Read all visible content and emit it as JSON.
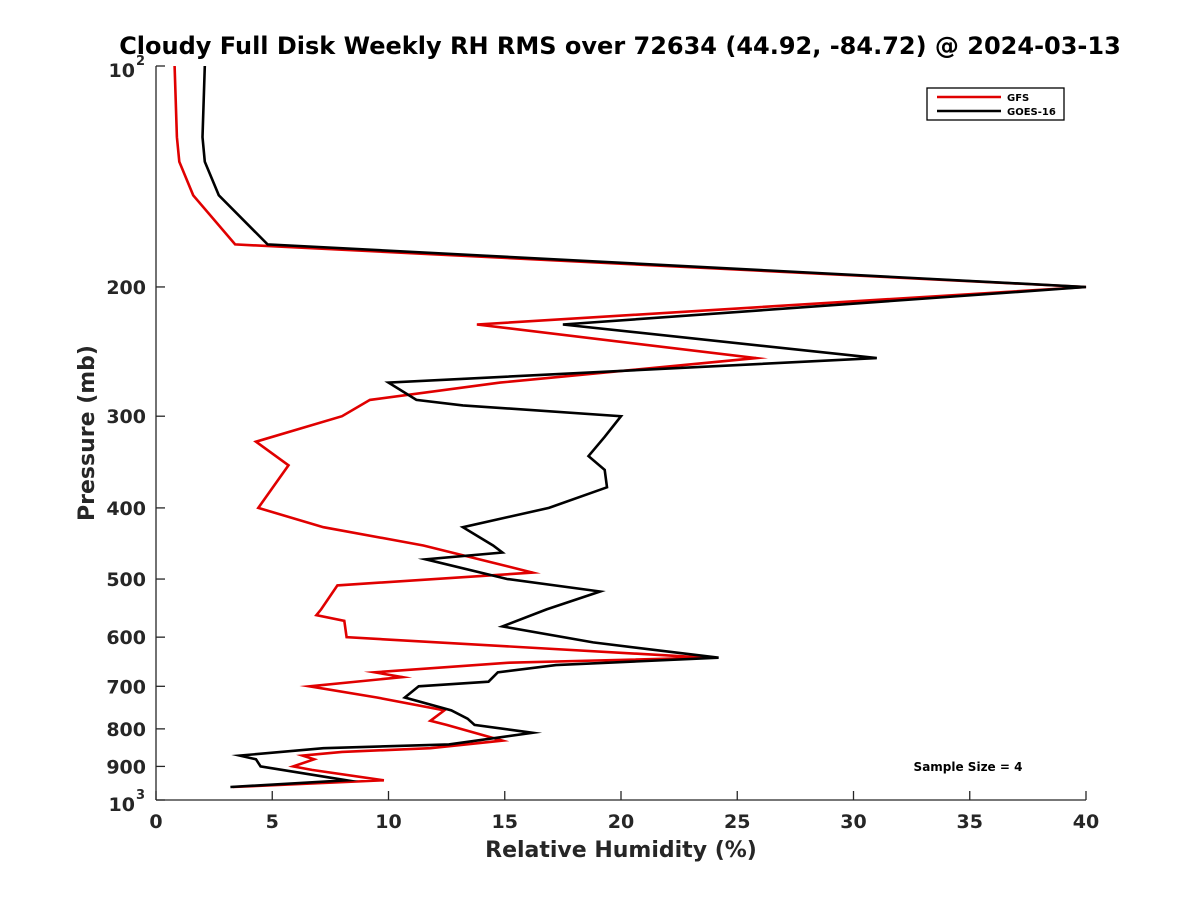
{
  "chart_data": {
    "type": "line",
    "title": "Cloudy Full Disk Weekly RH RMS over 72634 (44.92, -84.72) @ 2024-03-13",
    "xlabel": "Relative Humidity (%)",
    "ylabel": "Pressure (mb)",
    "xlim": [
      0,
      40
    ],
    "ylim": [
      100,
      1000
    ],
    "y_scale": "log",
    "y_reversed": true,
    "xticks": [
      0,
      5,
      10,
      15,
      20,
      25,
      30,
      35,
      40
    ],
    "yticks": [
      {
        "value": 100,
        "label": "10",
        "sup": "2"
      },
      {
        "value": 200,
        "label": "200"
      },
      {
        "value": 300,
        "label": "300"
      },
      {
        "value": 400,
        "label": "400"
      },
      {
        "value": 500,
        "label": "500"
      },
      {
        "value": 600,
        "label": "600"
      },
      {
        "value": 700,
        "label": "700"
      },
      {
        "value": 800,
        "label": "800"
      },
      {
        "value": 900,
        "label": "900"
      },
      {
        "value": 1000,
        "label": "10",
        "sup": "3"
      }
    ],
    "grid": false,
    "legend_position": "top-right",
    "annotation": "Sample Size = 4",
    "series": [
      {
        "name": "GFS",
        "color": "#e00000",
        "points": [
          [
            0.8,
            100
          ],
          [
            0.9,
            125
          ],
          [
            1.0,
            135
          ],
          [
            1.6,
            150
          ],
          [
            3.4,
            175
          ],
          [
            40.0,
            200
          ],
          [
            13.8,
            225
          ],
          [
            25.8,
            250
          ],
          [
            14.8,
            270
          ],
          [
            9.2,
            285
          ],
          [
            8.0,
            300
          ],
          [
            4.3,
            325
          ],
          [
            5.7,
            350
          ],
          [
            4.4,
            400
          ],
          [
            7.2,
            425
          ],
          [
            11.5,
            450
          ],
          [
            14.5,
            475
          ],
          [
            16.2,
            490
          ],
          [
            7.8,
            510
          ],
          [
            7.1,
            550
          ],
          [
            6.9,
            560
          ],
          [
            8.1,
            570
          ],
          [
            8.2,
            600
          ],
          [
            23.7,
            640
          ],
          [
            15.2,
            650
          ],
          [
            9.4,
            670
          ],
          [
            10.6,
            680
          ],
          [
            6.6,
            700
          ],
          [
            9.5,
            725
          ],
          [
            12.4,
            755
          ],
          [
            11.8,
            780
          ],
          [
            12.5,
            790
          ],
          [
            14.9,
            830
          ],
          [
            11.8,
            850
          ],
          [
            8.0,
            860
          ],
          [
            6.3,
            870
          ],
          [
            6.8,
            880
          ],
          [
            5.9,
            900
          ],
          [
            6.7,
            910
          ],
          [
            9.8,
            940
          ],
          [
            3.3,
            960
          ]
        ]
      },
      {
        "name": "GOES-16",
        "color": "#000000",
        "points": [
          [
            2.1,
            100
          ],
          [
            2.0,
            125
          ],
          [
            2.1,
            135
          ],
          [
            2.7,
            150
          ],
          [
            4.8,
            175
          ],
          [
            40.0,
            200
          ],
          [
            17.5,
            225
          ],
          [
            31.0,
            250
          ],
          [
            10.0,
            270
          ],
          [
            11.2,
            285
          ],
          [
            13.2,
            290
          ],
          [
            20.0,
            300
          ],
          [
            19.3,
            320
          ],
          [
            18.6,
            340
          ],
          [
            19.3,
            355
          ],
          [
            19.4,
            375
          ],
          [
            16.9,
            400
          ],
          [
            13.2,
            425
          ],
          [
            14.5,
            450
          ],
          [
            14.9,
            460
          ],
          [
            11.6,
            470
          ],
          [
            15.1,
            500
          ],
          [
            19.1,
            520
          ],
          [
            16.8,
            550
          ],
          [
            14.9,
            580
          ],
          [
            18.8,
            610
          ],
          [
            24.2,
            640
          ],
          [
            17.2,
            655
          ],
          [
            14.7,
            670
          ],
          [
            14.3,
            690
          ],
          [
            11.3,
            700
          ],
          [
            10.7,
            725
          ],
          [
            12.7,
            755
          ],
          [
            13.4,
            775
          ],
          [
            13.7,
            790
          ],
          [
            16.2,
            810
          ],
          [
            12.6,
            840
          ],
          [
            7.2,
            850
          ],
          [
            3.6,
            870
          ],
          [
            4.3,
            880
          ],
          [
            4.5,
            900
          ],
          [
            8.2,
            940
          ],
          [
            3.2,
            960
          ]
        ]
      }
    ]
  }
}
